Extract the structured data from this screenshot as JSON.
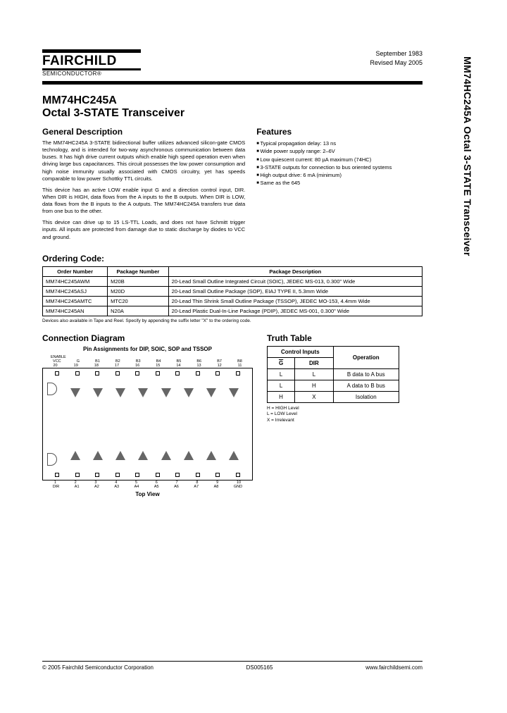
{
  "side_title": "MM74HC245A Octal 3-STATE Transceiver",
  "header": {
    "logo_main": "FAIRCHILD",
    "logo_sub": "SEMICONDUCTOR®",
    "date1": "September 1983",
    "date2": "Revised May 2005"
  },
  "title": {
    "part": "MM74HC245A",
    "name": "Octal 3-STATE Transceiver"
  },
  "gendesc": {
    "heading": "General Description",
    "p1": "The MM74HC245A 3-STATE bidirectional buffer utilizes advanced silicon-gate CMOS technology, and is intended for two-way asynchronous communication between data buses. It has high drive current outputs which enable high speed operation even when driving large bus capacitances. This circuit possesses the low power consumption and high noise immunity usually associated with CMOS circuitry, yet has speeds comparable to low power Schottky TTL circuits.",
    "p2": "This device has an active LOW enable input G and a direction control input, DIR. When DIR is HIGH, data flows from the A inputs to the B outputs. When DIR is LOW, data flows from the B inputs to the A outputs. The MM74HC245A transfers true data from one bus to the other.",
    "p3": "This device can drive up to 15 LS-TTL Loads, and does not have Schmitt trigger inputs. All inputs are protected from damage due to static discharge by diodes to VCC and ground."
  },
  "features": {
    "heading": "Features",
    "items": [
      "Typical propagation delay: 13 ns",
      "Wide power supply range: 2–6V",
      "Low quiescent current: 80 µA maximum (74HC)",
      "3-STATE outputs for connection to bus oriented systems",
      "High output drive: 6 mA (minimum)",
      "Same as the 645"
    ]
  },
  "ordering": {
    "heading": "Ordering Code:",
    "columns": [
      "Order Number",
      "Package Number",
      "Package Description"
    ],
    "rows": [
      [
        "MM74HC245AWM",
        "M20B",
        "20-Lead Small Outline Integrated Circuit (SOIC), JEDEC MS-013, 0.300\" Wide"
      ],
      [
        "MM74HC245ASJ",
        "M20D",
        "20-Lead Small Outline Package (SOP), EIAJ TYPE II, 5.3mm Wide"
      ],
      [
        "MM74HC245AMTC",
        "MTC20",
        "20-Lead Thin Shrink Small Outline Package (TSSOP), JEDEC MO-153, 4.4mm Wide"
      ],
      [
        "MM74HC245AN",
        "N20A",
        "20-Lead Plastic Dual-In-Line Package (PDIP), JEDEC MS-001, 0.300\" Wide"
      ]
    ],
    "note": "Devices also available in Tape and Reel. Specify by appending the suffix letter \"X\" to the ordering code."
  },
  "conn": {
    "heading": "Connection Diagram",
    "caption": "Pin Assignments for DIP, SOIC, SOP and TSSOP",
    "top_pins": [
      "VCC",
      "G",
      "B1",
      "B2",
      "B3",
      "B4",
      "B5",
      "B6",
      "B7",
      "B8"
    ],
    "top_nums": [
      "20",
      "19",
      "18",
      "17",
      "16",
      "15",
      "14",
      "13",
      "12",
      "11"
    ],
    "bot_nums": [
      "1",
      "2",
      "3",
      "4",
      "5",
      "6",
      "7",
      "8",
      "9",
      "10"
    ],
    "bot_pins": [
      "DIR",
      "A1",
      "A2",
      "A3",
      "A4",
      "A5",
      "A6",
      "A7",
      "A8",
      "GND"
    ],
    "topview": "Top View",
    "enable_label": "ENABLE"
  },
  "truth": {
    "heading": "Truth Table",
    "head_ctrl": "Control Inputs",
    "head_op": "Operation",
    "sub_g": "G",
    "sub_dir": "DIR",
    "rows": [
      [
        "L",
        "L",
        "B data to A bus"
      ],
      [
        "L",
        "H",
        "A data to B bus"
      ],
      [
        "H",
        "X",
        "Isolation"
      ]
    ],
    "notes": "H = HIGH Level\nL = LOW Level\nX = Irrelevant"
  },
  "footer": {
    "left": "© 2005 Fairchild Semiconductor Corporation",
    "mid": "DS005165",
    "right": "www.fairchildsemi.com"
  }
}
